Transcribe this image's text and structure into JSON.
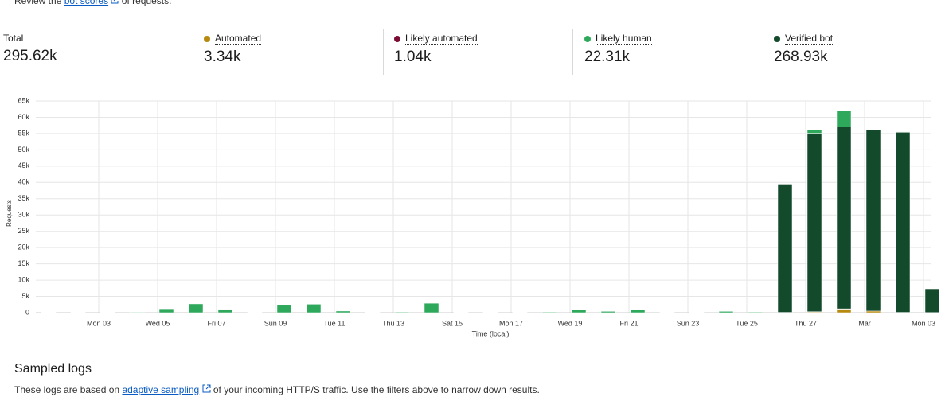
{
  "header": {
    "text_before": "Review the",
    "link": "bot scores",
    "text_after": "of requests."
  },
  "summary": {
    "total_label": "Total",
    "total": "295.62k",
    "series_totals": [
      "3.34k",
      "1.04k",
      "22.31k",
      "268.93k"
    ]
  },
  "chart_data": {
    "type": "bar",
    "stacked": true,
    "x_label": "Time (local)",
    "y_label": "Requests",
    "grid": true,
    "categories": [
      null,
      null,
      "Mon 03",
      null,
      "Wed 05",
      null,
      "Fri 07",
      null,
      "Sun 09",
      null,
      "Tue 11",
      null,
      "Thu 13",
      null,
      "Sat 15",
      null,
      "Mon 17",
      null,
      "Wed 19",
      null,
      "Fri 21",
      null,
      "Sun 23",
      null,
      "Tue 25",
      null,
      "Thu 27",
      null,
      "Mar",
      null,
      "Mon 03"
    ],
    "series": [
      {
        "name": "Automated",
        "color": "#b8890f",
        "values": [
          0,
          0,
          0,
          0,
          0,
          0,
          0,
          0,
          0,
          0,
          0,
          0,
          0,
          0,
          0,
          0,
          0,
          0,
          0,
          0,
          0,
          0,
          0,
          0,
          0,
          100,
          200,
          1100,
          500,
          100,
          50
        ]
      },
      {
        "name": "Likely automated",
        "color": "#7b0c33",
        "values": [
          0,
          0,
          0,
          0,
          0,
          0,
          0,
          0,
          0,
          0,
          0,
          0,
          0,
          0,
          0,
          0,
          0,
          0,
          0,
          0,
          0,
          0,
          0,
          0,
          0,
          0,
          100,
          100,
          0,
          0,
          0
        ]
      },
      {
        "name": "Likely human",
        "color": "#2ea85b",
        "values": [
          100,
          100,
          100,
          150,
          1200,
          2700,
          1000,
          100,
          2500,
          2600,
          500,
          100,
          200,
          2900,
          100,
          100,
          100,
          200,
          800,
          400,
          800,
          100,
          100,
          400,
          200,
          100,
          1000,
          4900,
          100,
          100,
          100
        ]
      },
      {
        "name": "Verified bot",
        "color": "#134a2b",
        "values": [
          0,
          0,
          0,
          0,
          0,
          0,
          0,
          0,
          0,
          0,
          0,
          0,
          0,
          0,
          0,
          0,
          0,
          0,
          0,
          0,
          0,
          0,
          0,
          0,
          0,
          39400,
          54800,
          55900,
          55600,
          55300,
          7300
        ]
      }
    ],
    "ylim": [
      0,
      65000
    ],
    "yticks": [
      {
        "value": 0,
        "label": "0"
      },
      {
        "value": 5000,
        "label": "5k"
      },
      {
        "value": 10000,
        "label": "10k"
      },
      {
        "value": 15000,
        "label": "15k"
      },
      {
        "value": 20000,
        "label": "20k"
      },
      {
        "value": 25000,
        "label": "25k"
      },
      {
        "value": 30000,
        "label": "30k"
      },
      {
        "value": 35000,
        "label": "35k"
      },
      {
        "value": 40000,
        "label": "40k"
      },
      {
        "value": 45000,
        "label": "45k"
      },
      {
        "value": 50000,
        "label": "50k"
      },
      {
        "value": 55000,
        "label": "55k"
      },
      {
        "value": 60000,
        "label": "60k"
      },
      {
        "value": 65000,
        "label": "65k"
      }
    ]
  },
  "logs": {
    "title": "Sampled logs",
    "text_before": "These logs are based on",
    "link": "adaptive sampling",
    "text_after": "of your incoming HTTP/S traffic. Use the filters above to narrow down results."
  }
}
